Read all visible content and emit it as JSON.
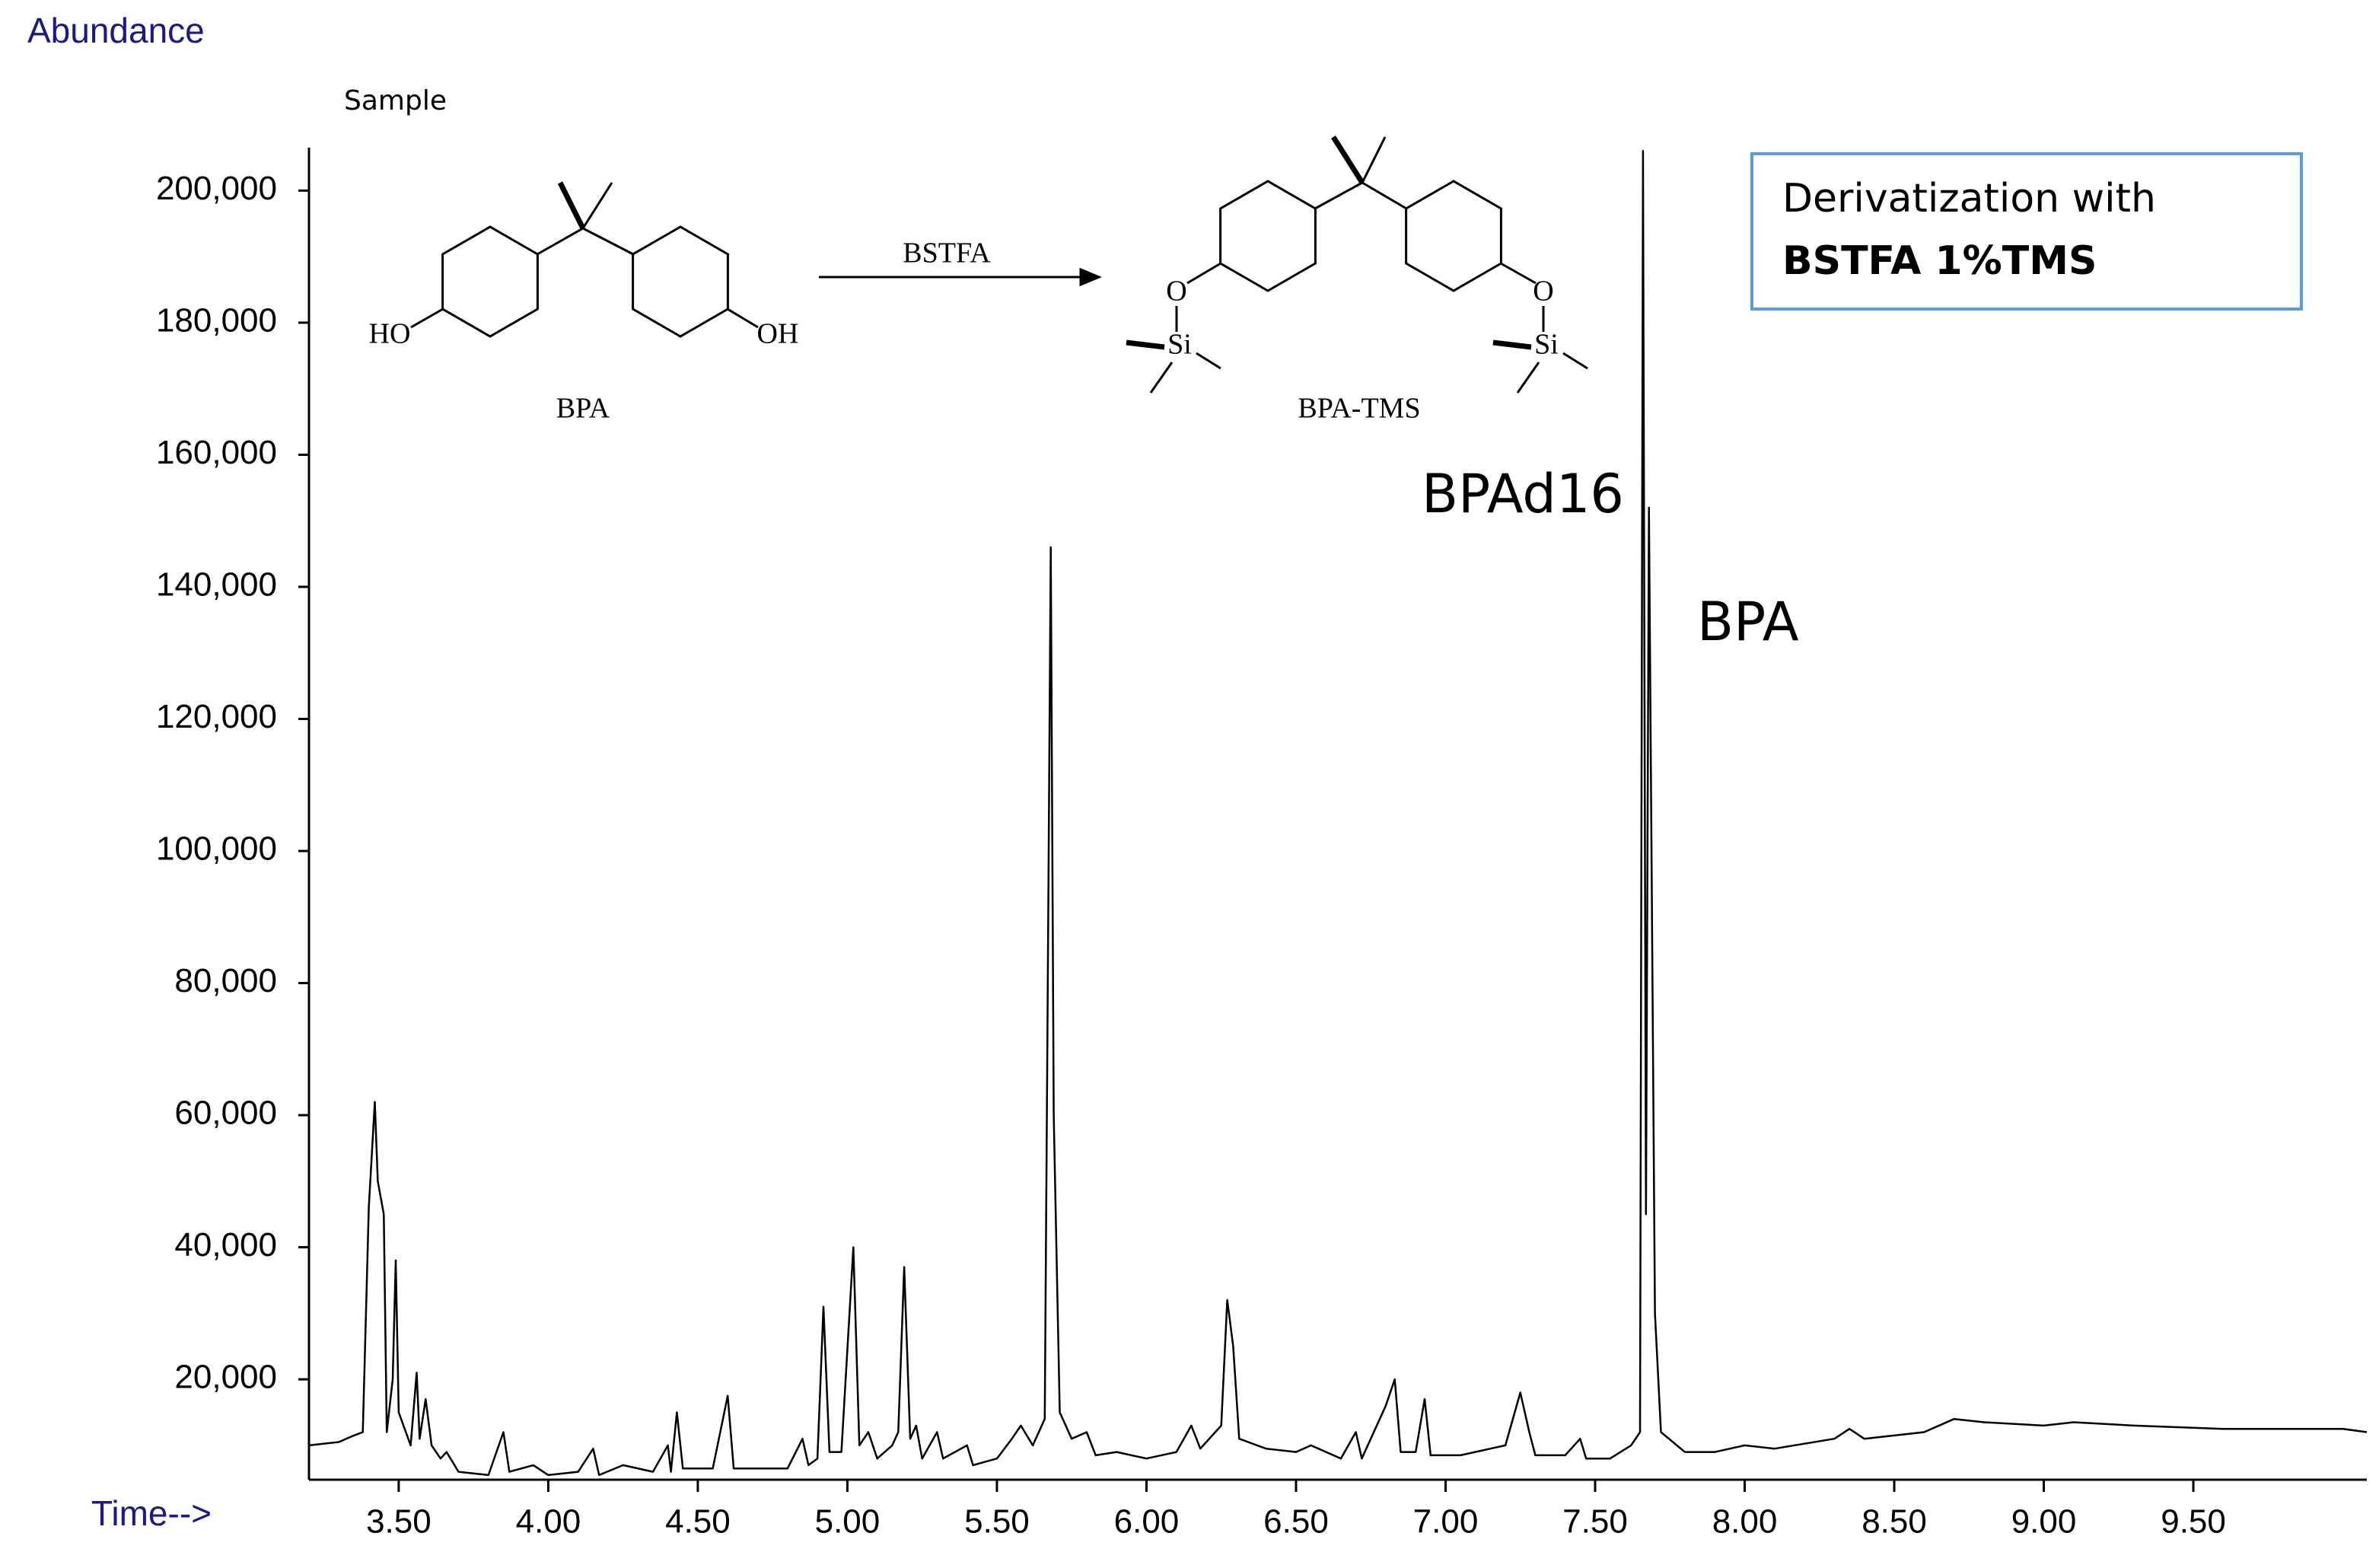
{
  "chart_data": {
    "type": "line",
    "y_label": "Abundance",
    "x_label": "Time-->",
    "subtitle": "Sample",
    "color": "#000000",
    "x": [
      3.2,
      3.3,
      3.35,
      3.38,
      3.4,
      3.42,
      3.43,
      3.45,
      3.46,
      3.48,
      3.49,
      3.5,
      3.54,
      3.56,
      3.57,
      3.59,
      3.61,
      3.64,
      3.66,
      3.7,
      3.8,
      3.85,
      3.87,
      3.95,
      4.0,
      4.1,
      4.15,
      4.17,
      4.25,
      4.35,
      4.4,
      4.41,
      4.43,
      4.45,
      4.55,
      4.6,
      4.62,
      4.7,
      4.8,
      4.85,
      4.87,
      4.9,
      4.92,
      4.94,
      4.98,
      5.02,
      5.04,
      5.07,
      5.1,
      5.15,
      5.17,
      5.19,
      5.21,
      5.23,
      5.25,
      5.3,
      5.32,
      5.4,
      5.42,
      5.5,
      5.55,
      5.58,
      5.62,
      5.66,
      5.67,
      5.68,
      5.69,
      5.71,
      5.75,
      5.8,
      5.83,
      5.9,
      6.0,
      6.1,
      6.15,
      6.18,
      6.25,
      6.27,
      6.29,
      6.31,
      6.4,
      6.5,
      6.55,
      6.65,
      6.7,
      6.72,
      6.8,
      6.83,
      6.85,
      6.9,
      6.93,
      6.95,
      7.05,
      7.15,
      7.2,
      7.25,
      7.28,
      7.3,
      7.4,
      7.45,
      7.47,
      7.55,
      7.62,
      7.65,
      7.66,
      7.67,
      7.68,
      7.7,
      7.72,
      7.8,
      7.9,
      8.0,
      8.1,
      8.3,
      8.35,
      8.4,
      8.6,
      8.7,
      8.8,
      9.0,
      9.1,
      9.3,
      9.6,
      10.0,
      10.08
    ],
    "values": [
      10000,
      10500,
      11500,
      12000,
      46000,
      62000,
      50000,
      45000,
      12000,
      20000,
      38000,
      15000,
      10000,
      21000,
      11000,
      17000,
      10000,
      8000,
      9000,
      6000,
      5500,
      12000,
      6000,
      7000,
      5500,
      6000,
      9500,
      5500,
      7000,
      6000,
      10000,
      6000,
      15000,
      6500,
      6500,
      17500,
      6500,
      6500,
      6500,
      11000,
      7000,
      8000,
      31000,
      9000,
      9000,
      40000,
      10000,
      12000,
      8000,
      10000,
      12000,
      37000,
      11000,
      13000,
      8000,
      12000,
      8000,
      10000,
      7000,
      8000,
      11000,
      13000,
      10000,
      14000,
      80000,
      146000,
      60000,
      15000,
      11000,
      12000,
      8500,
      9000,
      8000,
      9000,
      13000,
      9500,
      13000,
      32000,
      25000,
      11000,
      9500,
      9000,
      10000,
      8000,
      12000,
      8000,
      16000,
      20000,
      9000,
      9000,
      17000,
      8500,
      8500,
      9500,
      10000,
      18000,
      12000,
      8500,
      8500,
      11000,
      8000,
      8000,
      10000,
      12000,
      206000,
      45000,
      152000,
      30000,
      12000,
      9000,
      9000,
      10000,
      9500,
      11000,
      12500,
      11000,
      12000,
      14000,
      13500,
      13000,
      13500,
      13000,
      12500,
      12500,
      12000
    ],
    "xlim": [
      3.2,
      10.08
    ],
    "ylim": [
      4800,
      206500
    ],
    "xticks": [
      {
        "value": 3.5,
        "label": "3.50"
      },
      {
        "value": 4.0,
        "label": "4.00"
      },
      {
        "value": 4.5,
        "label": "4.50"
      },
      {
        "value": 5.0,
        "label": "5.00"
      },
      {
        "value": 5.5,
        "label": "5.50"
      },
      {
        "value": 6.0,
        "label": "6.00"
      },
      {
        "value": 6.5,
        "label": "6.50"
      },
      {
        "value": 7.0,
        "label": "7.00"
      },
      {
        "value": 7.5,
        "label": "7.50"
      },
      {
        "value": 8.0,
        "label": "8.00"
      },
      {
        "value": 8.5,
        "label": "8.50"
      },
      {
        "value": 9.0,
        "label": "9.00"
      },
      {
        "value": 9.5,
        "label": "9.50"
      }
    ],
    "yticks": [
      {
        "value": 20000,
        "label": "20,000"
      },
      {
        "value": 40000,
        "label": "40,000"
      },
      {
        "value": 60000,
        "label": "60,000"
      },
      {
        "value": 80000,
        "label": "80,000"
      },
      {
        "value": 100000,
        "label": "100,000"
      },
      {
        "value": 120000,
        "label": "120,000"
      },
      {
        "value": 140000,
        "label": "140,000"
      },
      {
        "value": 160000,
        "label": "160,000"
      },
      {
        "value": 180000,
        "label": "180,000"
      },
      {
        "value": 200000,
        "label": "200,000"
      }
    ],
    "grid": false,
    "annotations": [
      "BPAd16",
      "BPA"
    ],
    "info_box": [
      "Derivatization with",
      "BSTFA 1%TMS"
    ],
    "scheme": {
      "reactant": "BPA",
      "reagent": "BSTFA",
      "product": "BPA-TMS",
      "reactant_groups": [
        "HO",
        "OH"
      ],
      "product_groups": [
        "O",
        "Si",
        "O",
        "Si"
      ]
    }
  }
}
